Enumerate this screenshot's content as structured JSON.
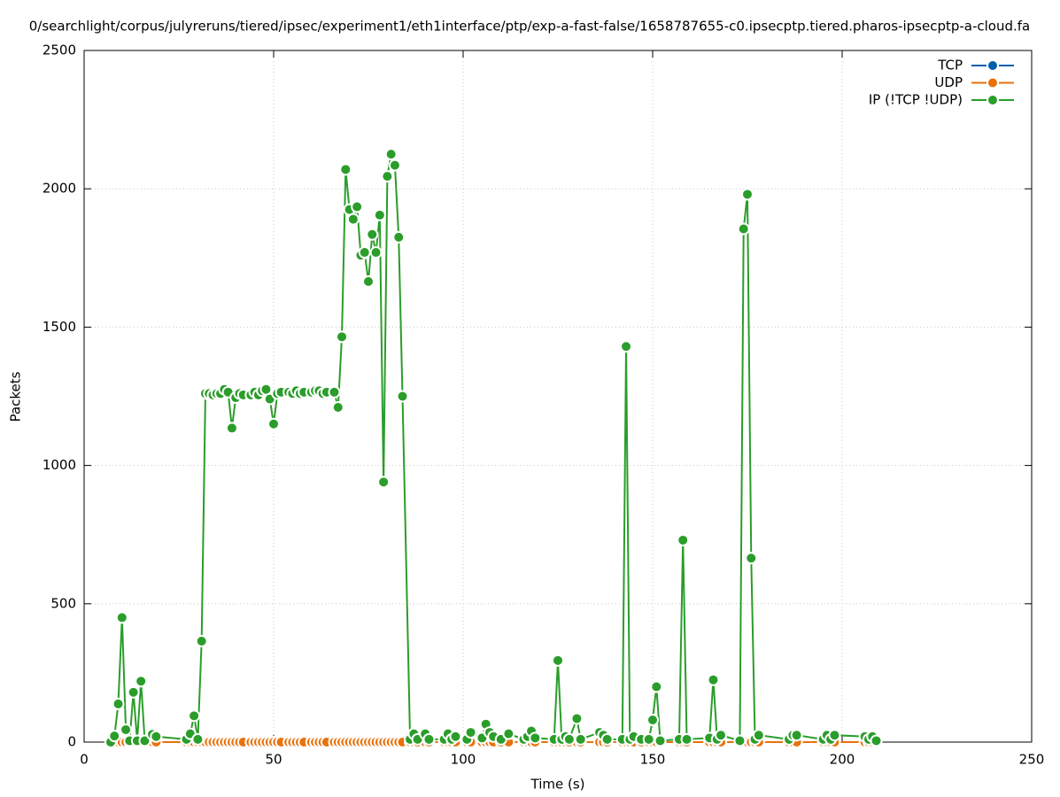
{
  "chart_data": {
    "type": "line",
    "title": "0/searchlight/corpus/julyreruns/tiered/ipsec/experiment1/eth1interface/ptp/exp-a-fast-false/1658787655-c0.ipsecptp.tiered.pharos-ipsecptp-a-cloud.fa",
    "x_label": "Time (s)",
    "y_label": "Packets",
    "x": [
      7,
      8,
      9,
      10,
      11,
      12,
      13,
      14,
      15,
      16,
      18,
      19,
      27,
      28,
      29,
      30,
      31,
      32,
      33,
      34,
      35,
      36,
      37,
      38,
      39,
      40,
      41,
      42,
      44,
      45,
      46,
      47,
      48,
      49,
      50,
      51,
      52,
      54,
      55,
      56,
      57,
      58,
      60,
      61,
      62,
      63,
      64,
      66,
      67,
      68,
      69,
      70,
      71,
      72,
      73,
      74,
      75,
      76,
      77,
      78,
      79,
      80,
      81,
      82,
      83,
      84,
      86,
      87,
      88,
      90,
      91,
      95,
      96,
      97,
      98,
      101,
      102,
      105,
      106,
      107,
      108,
      110,
      112,
      116,
      117,
      118,
      119,
      124,
      125,
      126,
      127,
      128,
      130,
      131,
      136,
      137,
      138,
      142,
      143,
      144,
      145,
      147,
      149,
      150,
      151,
      152,
      157,
      158,
      159,
      165,
      166,
      167,
      168,
      173,
      174,
      175,
      176,
      177,
      178,
      186,
      187,
      188,
      195,
      196,
      197,
      198,
      206,
      207,
      208,
      209
    ],
    "series": [
      {
        "name": "TCP",
        "color": "#0060ad",
        "values": [
          0,
          0,
          0,
          0,
          0,
          0,
          0,
          0,
          0,
          0,
          0,
          0,
          0,
          0,
          0,
          0,
          0,
          0,
          0,
          0,
          0,
          0,
          0,
          0,
          0,
          0,
          0,
          0,
          0,
          0,
          0,
          0,
          0,
          0,
          0,
          0,
          0,
          0,
          0,
          0,
          0,
          0,
          0,
          0,
          0,
          0,
          0,
          0,
          0,
          0,
          0,
          0,
          0,
          0,
          0,
          0,
          0,
          0,
          0,
          0,
          0,
          0,
          0,
          0,
          0,
          0,
          0,
          0,
          0,
          0,
          0,
          0,
          0,
          0,
          0,
          0,
          0,
          0,
          0,
          0,
          0,
          0,
          0,
          0,
          0,
          0,
          0,
          0,
          0,
          0,
          0,
          0,
          0,
          0,
          0,
          0,
          0,
          0,
          0,
          0,
          0,
          0,
          0,
          0,
          0,
          0,
          0,
          0,
          0,
          0,
          0,
          0,
          0,
          0,
          0,
          0,
          0,
          0,
          0,
          0,
          0,
          0,
          0,
          0,
          0,
          0,
          0,
          0,
          0,
          0
        ]
      },
      {
        "name": "UDP",
        "color": "#e8720c",
        "values": [
          0,
          0,
          0,
          0,
          0,
          0,
          0,
          0,
          0,
          0,
          0,
          0,
          0,
          0,
          0,
          0,
          0,
          0,
          0,
          0,
          0,
          0,
          0,
          0,
          0,
          0,
          0,
          0,
          0,
          0,
          0,
          0,
          0,
          0,
          0,
          0,
          0,
          0,
          0,
          0,
          0,
          0,
          0,
          0,
          0,
          0,
          0,
          0,
          0,
          0,
          0,
          0,
          0,
          0,
          0,
          0,
          0,
          0,
          0,
          0,
          0,
          0,
          0,
          0,
          0,
          0,
          0,
          0,
          0,
          0,
          0,
          0,
          0,
          0,
          0,
          0,
          0,
          0,
          0,
          0,
          0,
          0,
          0,
          0,
          0,
          0,
          0,
          0,
          0,
          0,
          0,
          0,
          0,
          0,
          0,
          0,
          0,
          0,
          0,
          0,
          0,
          0,
          0,
          0,
          0,
          0,
          0,
          0,
          0,
          0,
          0,
          0,
          0,
          0,
          0,
          0,
          0,
          0,
          0,
          0,
          0,
          0,
          0,
          0,
          0,
          0,
          0,
          0,
          0,
          0
        ]
      },
      {
        "name": "IP (!TCP  !UDP)",
        "color": "#2a9d2a",
        "values": [
          0,
          22,
          138,
          450,
          45,
          5,
          180,
          5,
          220,
          5,
          28,
          20,
          10,
          30,
          95,
          10,
          365,
          1260,
          1260,
          1255,
          1260,
          1260,
          1275,
          1265,
          1135,
          1245,
          1260,
          1255,
          1255,
          1265,
          1255,
          1270,
          1275,
          1240,
          1150,
          1260,
          1265,
          1265,
          1260,
          1270,
          1260,
          1265,
          1265,
          1270,
          1270,
          1260,
          1265,
          1265,
          1210,
          1465,
          2070,
          1925,
          1890,
          1935,
          1760,
          1770,
          1665,
          1835,
          1770,
          1905,
          940,
          2045,
          2125,
          2085,
          1825,
          1250,
          10,
          30,
          10,
          30,
          10,
          10,
          30,
          10,
          20,
          10,
          35,
          15,
          65,
          35,
          20,
          10,
          30,
          10,
          20,
          40,
          15,
          10,
          295,
          10,
          20,
          10,
          85,
          10,
          35,
          25,
          10,
          10,
          1430,
          10,
          20,
          10,
          10,
          80,
          200,
          5,
          10,
          730,
          10,
          15,
          225,
          10,
          25,
          5,
          1855,
          1980,
          665,
          10,
          25,
          10,
          25,
          25,
          10,
          25,
          10,
          25,
          20,
          10,
          20,
          5
        ]
      }
    ],
    "xlim": [
      0,
      250
    ],
    "xticks": [
      0,
      50,
      100,
      150,
      200,
      250
    ],
    "ylim": [
      0,
      2500
    ],
    "yticks": [
      0,
      500,
      1000,
      1500,
      2000,
      2500
    ],
    "grid": true,
    "legend": "top-right"
  }
}
